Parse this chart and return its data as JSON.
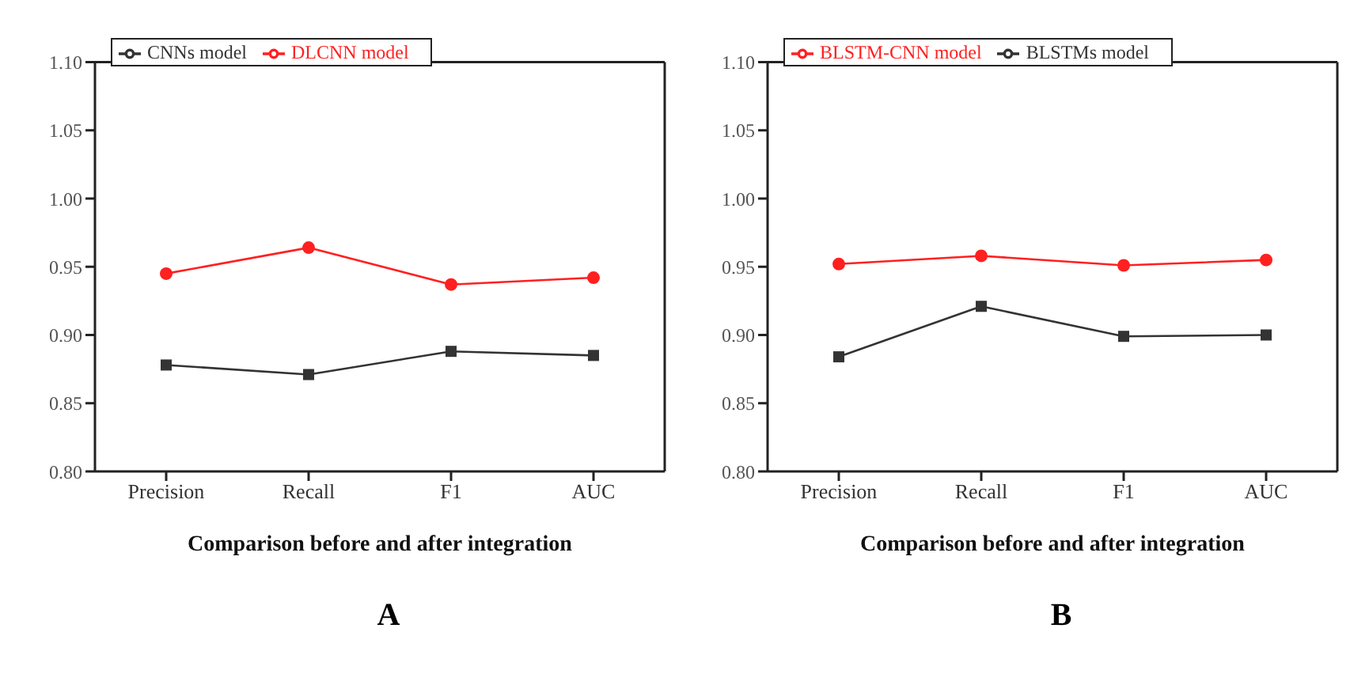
{
  "chart_data": [
    {
      "type": "line",
      "categories": [
        "Precision",
        "Recall",
        "F1",
        "AUC"
      ],
      "xlabel": "Comparison before and after integration",
      "ylim": [
        0.8,
        1.1
      ],
      "yticks": [
        {
          "value": 0.8,
          "label": "0.80"
        },
        {
          "value": 0.85,
          "label": "0.85"
        },
        {
          "value": 0.9,
          "label": "0.90"
        },
        {
          "value": 0.95,
          "label": "0.95"
        },
        {
          "value": 1.0,
          "label": "1.00"
        },
        {
          "value": 1.05,
          "label": "1.05"
        },
        {
          "value": 1.1,
          "label": "1.10"
        }
      ],
      "legend": "top left",
      "grid": false,
      "annotations": [
        "A"
      ],
      "series": [
        {
          "name": "CNNs model",
          "color": "#333333",
          "marker": "square",
          "values": [
            0.878,
            0.871,
            0.888,
            0.885
          ]
        },
        {
          "name": "DLCNN model",
          "color": "#ff2020",
          "marker": "circle",
          "values": [
            0.945,
            0.964,
            0.937,
            0.942
          ]
        }
      ]
    },
    {
      "type": "line",
      "categories": [
        "Precision",
        "Recall",
        "F1",
        "AUC"
      ],
      "xlabel": "Comparison before and after integration",
      "ylim": [
        0.8,
        1.1
      ],
      "yticks": [
        {
          "value": 0.8,
          "label": "0.80"
        },
        {
          "value": 0.85,
          "label": "0.85"
        },
        {
          "value": 0.9,
          "label": "0.90"
        },
        {
          "value": 0.95,
          "label": "0.95"
        },
        {
          "value": 1.0,
          "label": "1.00"
        },
        {
          "value": 1.05,
          "label": "1.05"
        },
        {
          "value": 1.1,
          "label": "1.10"
        }
      ],
      "legend": "top left",
      "grid": false,
      "annotations": [
        "B"
      ],
      "series": [
        {
          "name": "BLSTMs model",
          "color": "#333333",
          "marker": "square",
          "values": [
            0.884,
            0.921,
            0.899,
            0.9
          ]
        },
        {
          "name": "BLSTM-CNN model",
          "color": "#ff2020",
          "marker": "circle",
          "values": [
            0.952,
            0.958,
            0.951,
            0.955
          ]
        }
      ]
    }
  ]
}
